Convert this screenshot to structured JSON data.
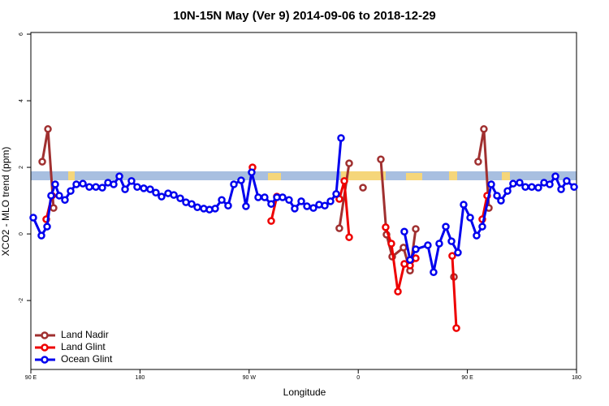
{
  "chart_data": {
    "type": "line",
    "title": "10N-15N May (Ver 9)   2014-09-06 to 2018-12-29",
    "x_label": "Longitude",
    "y_label": "XCO2 - MLO trend (ppm)",
    "xlim": [
      90,
      540
    ],
    "ylim": [
      -4.07,
      6.05
    ],
    "xticks": [
      {
        "value": 90,
        "label": "90 E"
      },
      180,
      {
        "value": 270,
        "label": "90 W"
      },
      {
        "value": 360,
        "label": "0"
      },
      {
        "value": 450,
        "label": "90 E"
      },
      {
        "value": 540,
        "label": "180"
      }
    ],
    "yticks": [
      6,
      4,
      2,
      0,
      -2
    ],
    "legend": "bottom-left",
    "series": [
      {
        "name": "Land Nadir",
        "color": "#a03030",
        "x": [
          99.4,
          104.1,
          108.7,
          200,
          344.4,
          352.5,
          355,
          363.9,
          370,
          378.6,
          383.3,
          388.0,
          397.3,
          402.7,
          407.4,
          420,
          438.9,
          450,
          458.9,
          463.6,
          467.7
        ],
        "values": [
          2.17,
          3.15,
          0.78,
          null,
          0.17,
          2.12,
          null,
          1.39,
          null,
          2.24,
          -0.02,
          -0.68,
          -0.41,
          -1.1,
          0.15,
          null,
          -1.29,
          null,
          2.17,
          3.15,
          0.78
        ]
      },
      {
        "name": "Land Glint",
        "color": "#ee0000",
        "x": [
          102.7,
          107.4,
          200,
          272.8,
          280,
          288.2,
          292.9,
          320,
          344.4,
          348.5,
          352.5,
          365,
          382.6,
          387.3,
          392.7,
          398.0,
          402.7,
          407.4,
          420,
          437.5,
          440.9,
          450,
          462.3,
          466.3
        ],
        "values": [
          0.44,
          1.15,
          null,
          2.0,
          null,
          0.39,
          1.12,
          null,
          1.05,
          1.59,
          -0.1,
          null,
          0.2,
          -0.29,
          -1.73,
          -0.9,
          -0.95,
          -0.73,
          null,
          -0.66,
          -2.83,
          null,
          0.44,
          1.15
        ]
      },
      {
        "name": "Ocean Glint",
        "color": "#0000ee",
        "x": [
          92.0,
          98.7,
          103.4,
          106.7,
          110.1,
          113.4,
          118.1,
          122.8,
          127.5,
          132.9,
          138.2,
          143.6,
          148.9,
          153.6,
          158.3,
          163.0,
          167.7,
          173.0,
          177.7,
          183.1,
          188.4,
          193.1,
          197.8,
          203.2,
          207.9,
          213.2,
          217.9,
          222.6,
          227.3,
          232.6,
          237.3,
          242.0,
          247.4,
          252.7,
          257.4,
          263.4,
          267.4,
          272.1,
          277.5,
          282.8,
          288.2,
          292.9,
          297.6,
          302.9,
          307.6,
          313.0,
          317.7,
          323.0,
          327.7,
          332.4,
          337.1,
          341.8,
          345.8,
          370,
          398.0,
          402.7,
          407.4,
          417.4,
          422.1,
          426.8,
          432.2,
          436.9,
          442.2,
          446.9,
          452.3,
          457.6,
          462.3,
          469.7,
          474.4,
          477.7,
          483.1,
          487.7,
          493.1,
          497.8,
          503.1,
          508.5,
          513.2,
          517.9,
          522.6,
          527.3,
          531.9,
          538.0
        ],
        "values": [
          0.49,
          -0.05,
          0.22,
          1.15,
          1.49,
          1.15,
          1.02,
          1.29,
          1.49,
          1.51,
          1.41,
          1.41,
          1.39,
          1.54,
          1.49,
          1.73,
          1.34,
          1.59,
          1.41,
          1.37,
          1.34,
          1.24,
          1.12,
          1.22,
          1.17,
          1.07,
          0.95,
          0.9,
          0.8,
          0.76,
          0.73,
          0.76,
          1.02,
          0.85,
          1.49,
          1.61,
          0.83,
          1.85,
          1.1,
          1.1,
          0.9,
          1.1,
          1.1,
          1.02,
          0.76,
          0.98,
          0.83,
          0.78,
          0.88,
          0.85,
          0.98,
          1.2,
          2.88,
          null,
          0.07,
          -0.78,
          -0.46,
          -0.34,
          -1.15,
          -0.29,
          0.22,
          -0.22,
          -0.56,
          0.88,
          0.49,
          -0.05,
          0.22,
          1.49,
          1.15,
          1.0,
          1.29,
          1.51,
          1.54,
          1.41,
          1.41,
          1.39,
          1.54,
          1.49,
          1.73,
          1.34,
          1.59,
          1.41
        ]
      }
    ]
  }
}
